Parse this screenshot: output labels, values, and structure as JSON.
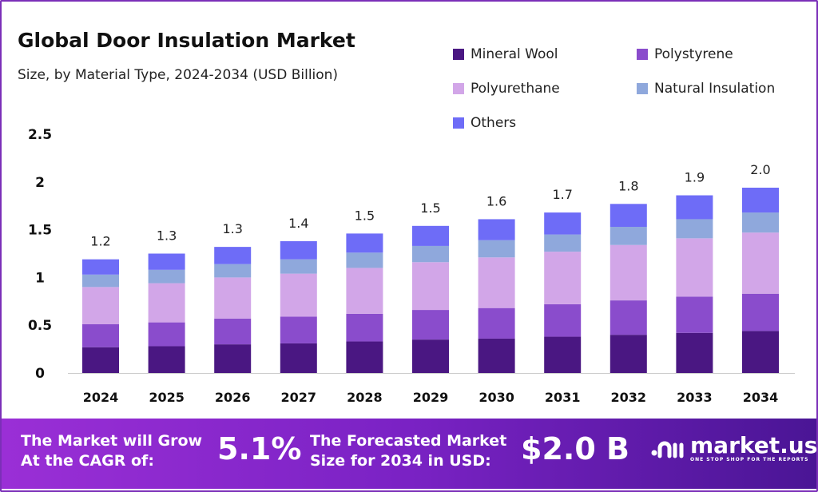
{
  "chart_data": {
    "type": "bar",
    "stacked": true,
    "title": "Global Door Insulation Market",
    "subtitle": "Size, by Material Type, 2024-2034 (USD Billion)",
    "categories": [
      "2024",
      "2025",
      "2026",
      "2027",
      "2028",
      "2029",
      "2030",
      "2031",
      "2032",
      "2033",
      "2034"
    ],
    "series": [
      {
        "name": "Mineral Wool",
        "color": "#4a1782",
        "values": [
          0.27,
          0.28,
          0.3,
          0.31,
          0.33,
          0.35,
          0.36,
          0.38,
          0.4,
          0.42,
          0.44
        ]
      },
      {
        "name": "Polystyrene",
        "color": "#8a4ccc",
        "values": [
          0.24,
          0.25,
          0.27,
          0.28,
          0.29,
          0.31,
          0.32,
          0.34,
          0.36,
          0.38,
          0.39
        ]
      },
      {
        "name": "Polyurethane",
        "color": "#d2a6e8",
        "values": [
          0.39,
          0.41,
          0.43,
          0.45,
          0.48,
          0.5,
          0.53,
          0.55,
          0.58,
          0.61,
          0.64
        ]
      },
      {
        "name": "Natural Insulation",
        "color": "#8fa8dc",
        "values": [
          0.13,
          0.14,
          0.14,
          0.15,
          0.16,
          0.17,
          0.18,
          0.18,
          0.19,
          0.2,
          0.21
        ]
      },
      {
        "name": "Others",
        "color": "#6e6cf7",
        "values": [
          0.16,
          0.17,
          0.18,
          0.19,
          0.2,
          0.21,
          0.22,
          0.23,
          0.24,
          0.25,
          0.26
        ]
      }
    ],
    "totals": [
      "1.2",
      "1.3",
      "1.3",
      "1.4",
      "1.5",
      "1.5",
      "1.6",
      "1.7",
      "1.8",
      "1.9",
      "2.0"
    ],
    "yticks": [
      "0",
      "0.5",
      "1",
      "1.5",
      "2",
      "2.5"
    ],
    "ylim": [
      0,
      2.5
    ],
    "grid": false,
    "legend": "top-right"
  },
  "footer": {
    "cagr_label": "The Market will Grow At the CAGR of:",
    "cagr_value": "5.1%",
    "forecast_label": "The Forecasted Market Size for 2034 in USD:",
    "forecast_value": "$2.0 B",
    "logo_text": "market.us",
    "logo_tagline": "ONE STOP SHOP FOR THE REPORTS"
  }
}
